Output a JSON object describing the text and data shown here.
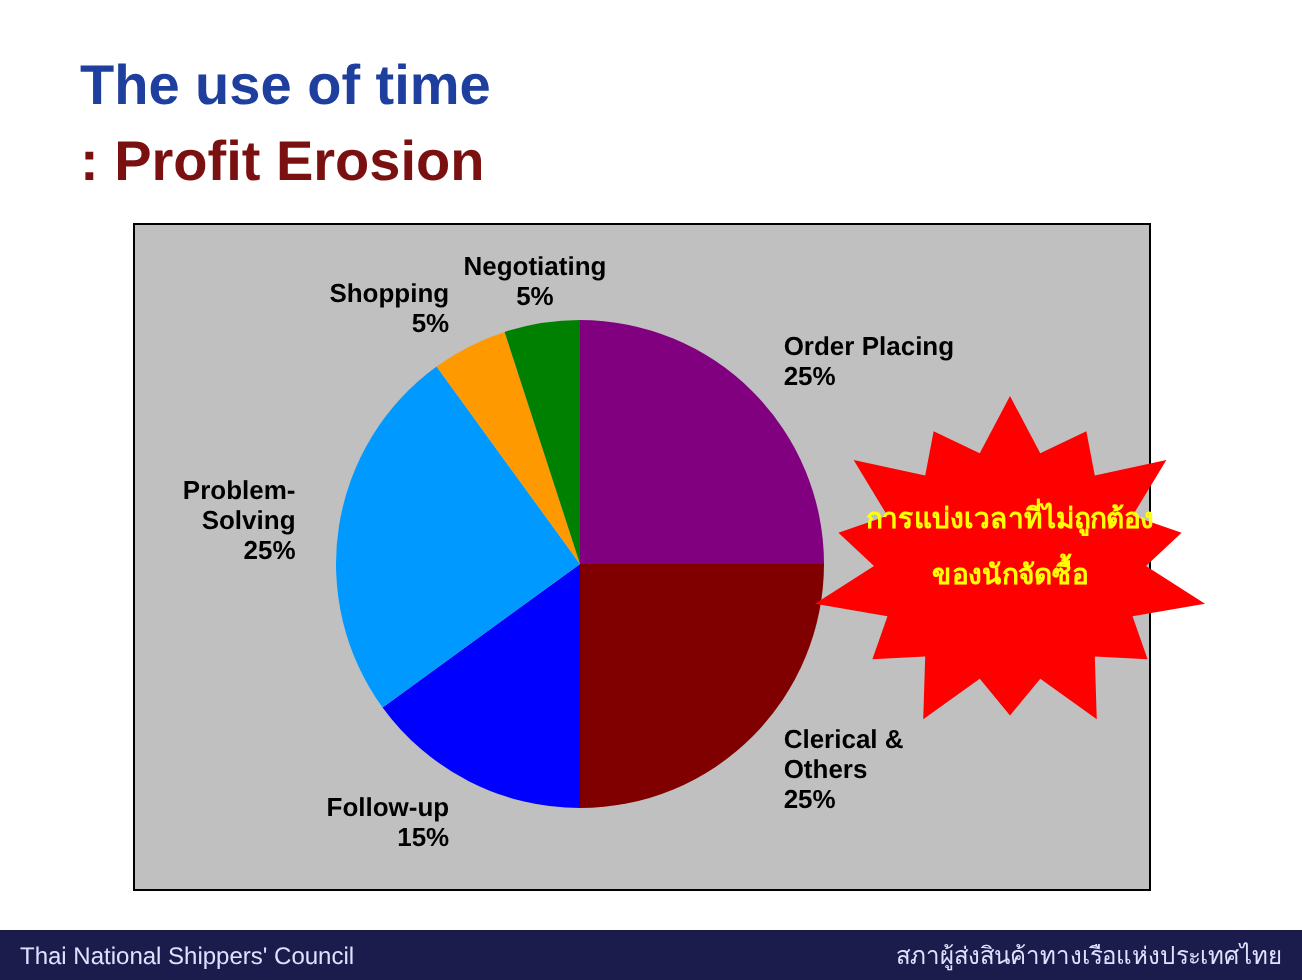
{
  "chart_data": {
    "type": "pie",
    "title": "The use of time",
    "subtitle": ": Profit Erosion",
    "categories": [
      "Order Placing",
      "Clerical & Others",
      "Follow-up",
      "Problem-Solving",
      "Shopping",
      "Negotiating"
    ],
    "values": [
      25,
      25,
      15,
      25,
      5,
      5
    ],
    "colors": [
      "#800080",
      "#800000",
      "#0000ff",
      "#0099ff",
      "#ff9900",
      "#008000"
    ],
    "value_labels": [
      "25%",
      "25%",
      "15%",
      "25%",
      "5%",
      "5%"
    ],
    "annotations": [
      "การแบ่งเวลาที่ไม่ถูกต้อง",
      "ของนักจัดซื้อ",
      "Thai National Shippers' Council",
      "สภาผู้ส่งสินค้าทางเรือแห่งประเทศไทย"
    ]
  }
}
